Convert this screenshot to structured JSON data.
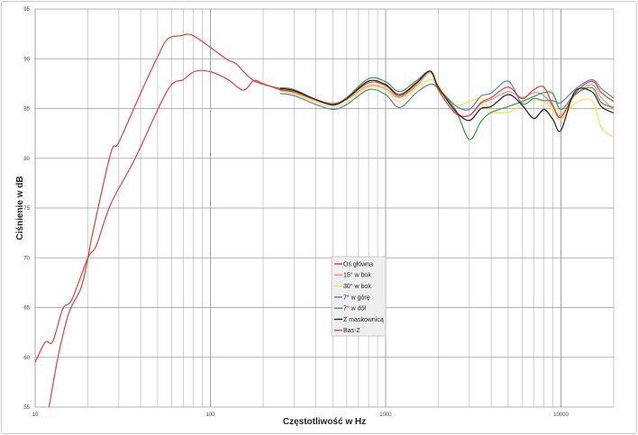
{
  "chart_data": {
    "type": "line",
    "title": "",
    "xlabel": "Częstotliwość w Hz",
    "ylabel": "Ciśnienie w dB",
    "xscale": "log",
    "xlim": [
      10,
      20000
    ],
    "ylim": [
      55,
      95
    ],
    "x_tick_labels": [
      "10",
      "100",
      "1000",
      "10000"
    ],
    "y_tick_labels": [
      "55",
      "60",
      "65",
      "70",
      "75",
      "80",
      "85",
      "90",
      "95"
    ],
    "grid": true,
    "legend_position": "center",
    "series": [
      {
        "name": "Oś główna",
        "color": "#e0403a",
        "x": [
          10,
          11.4,
          12.6,
          14.4,
          16.2,
          20,
          22.3,
          27,
          37,
          57,
          70,
          82,
          100,
          126,
          154,
          177,
          200,
          250,
          300,
          400,
          500,
          600,
          800,
          1000,
          1200,
          1500,
          1800,
          2000,
          2500,
          3000,
          3500,
          4000,
          5000,
          6000,
          7000,
          8000,
          9000,
          10000,
          12000,
          15000,
          17000,
          20000
        ],
        "y": [
          59.5,
          61.5,
          61.6,
          64.9,
          65.8,
          70,
          71.2,
          75.4,
          79.9,
          86.85,
          87.9,
          88.75,
          88.7,
          87.9,
          86.85,
          87.8,
          87.5,
          86.9,
          86.7,
          85.9,
          85.5,
          86.0,
          87.6,
          87.3,
          86.25,
          87.5,
          88.75,
          86.9,
          84.5,
          84.3,
          85.6,
          86.1,
          87.15,
          86.0,
          86.9,
          87.15,
          85.3,
          84.1,
          86.5,
          87.75,
          86.6,
          85.7
        ]
      },
      {
        "name": "15° w bok",
        "color": "#f08a80",
        "x": [
          250,
          300,
          400,
          500,
          600,
          800,
          1000,
          1200,
          1500,
          1800,
          2000,
          2500,
          3000,
          3500,
          4000,
          5000,
          6000,
          7000,
          8000,
          9000,
          10000,
          12000,
          15000,
          17000,
          20000
        ],
        "y": [
          86.8,
          86.6,
          85.8,
          85.4,
          85.9,
          87.3,
          87.0,
          86.1,
          87.3,
          88.6,
          86.8,
          84.6,
          84.3,
          85.5,
          85.9,
          86.7,
          86.1,
          86.6,
          86.3,
          85.2,
          84.3,
          86.3,
          87.4,
          86.1,
          84.9
        ]
      },
      {
        "name": "30° w bok",
        "color": "#f5e83a",
        "x": [
          250,
          300,
          400,
          500,
          600,
          800,
          1000,
          1200,
          1500,
          1800,
          2000,
          2500,
          3000,
          3500,
          4000,
          5000,
          6000,
          7000,
          8000,
          9000,
          10000,
          12000,
          15000,
          17000,
          20000
        ],
        "y": [
          86.7,
          86.5,
          85.6,
          85.1,
          85.6,
          87.15,
          86.8,
          85.7,
          87.1,
          87.9,
          87.3,
          85.4,
          85.7,
          86.0,
          84.75,
          84.6,
          85.35,
          85.8,
          85.65,
          84.9,
          83.9,
          85.5,
          85.8,
          83.1,
          82.1
        ]
      },
      {
        "name": "7° w górę",
        "color": "#4f81bd",
        "x": [
          250,
          300,
          400,
          500,
          600,
          800,
          1000,
          1200,
          1500,
          1800,
          2000,
          2500,
          3000,
          3500,
          4000,
          5000,
          6000,
          7000,
          8000,
          9000,
          10000,
          12000,
          15000,
          17000,
          20000
        ],
        "y": [
          86.5,
          86.3,
          85.4,
          84.9,
          85.4,
          86.9,
          86.4,
          85.1,
          86.6,
          87.45,
          87.0,
          85.3,
          84.9,
          86.25,
          86.55,
          87.75,
          85.5,
          86.0,
          85.8,
          85.8,
          85.6,
          86.9,
          87.9,
          87.0,
          86.05
        ]
      },
      {
        "name": "7° w dół",
        "color": "#3a9a48",
        "x": [
          250,
          300,
          400,
          500,
          600,
          800,
          1000,
          1200,
          1500,
          1800,
          2000,
          2500,
          3000,
          3500,
          4000,
          5000,
          6000,
          7000,
          8000,
          9000,
          10000,
          12000,
          15000,
          17000,
          20000
        ],
        "y": [
          87.1,
          86.9,
          85.9,
          85.4,
          86.1,
          88.0,
          87.7,
          86.7,
          87.8,
          88.75,
          87.0,
          84.9,
          81.9,
          83.7,
          84.6,
          85.2,
          85.7,
          86.2,
          86.6,
          86.5,
          84.9,
          86.4,
          87.1,
          85.6,
          85.1
        ]
      },
      {
        "name": "Z maskownicą",
        "color": "#222222",
        "x": [
          250,
          300,
          400,
          500,
          600,
          800,
          1000,
          1200,
          1500,
          1800,
          2000,
          2500,
          3000,
          3500,
          4000,
          5000,
          6000,
          7000,
          8000,
          9000,
          10000,
          12000,
          15000,
          17000,
          20000
        ],
        "y": [
          87.0,
          86.8,
          85.9,
          85.35,
          86.0,
          87.76,
          87.4,
          86.4,
          87.6,
          88.75,
          87.15,
          84.75,
          83.8,
          85.0,
          85.2,
          86.4,
          85.35,
          84.0,
          84.9,
          83.9,
          82.8,
          86.7,
          86.7,
          85.2,
          84.55
        ]
      },
      {
        "name": "Bas-Z",
        "color": "#e0403a",
        "x": [
          12,
          13.6,
          15.6,
          18.3,
          20,
          21.3,
          27,
          30,
          40,
          50,
          57,
          67,
          78,
          99,
          125,
          140,
          177,
          250
        ],
        "y": [
          55,
          60.3,
          64.5,
          67,
          70,
          72.5,
          80.5,
          81.6,
          86.55,
          90.2,
          92.0,
          92.3,
          92.4,
          91.2,
          89.9,
          89.5,
          87.8,
          87.0
        ]
      }
    ]
  }
}
